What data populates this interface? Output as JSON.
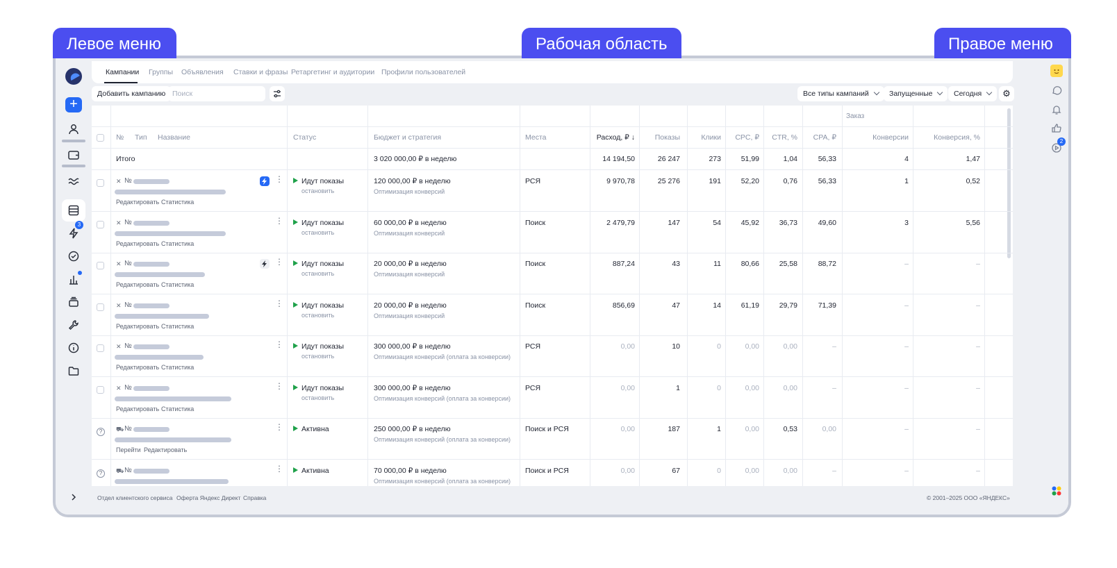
{
  "callouts": {
    "left_menu": "Левое меню",
    "work_area": "Рабочая область",
    "right_menu": "Правое меню"
  },
  "tabs": [
    "Кампании",
    "Группы",
    "Объявления",
    "Ставки и фразы",
    "Ретаргетинг и аудитории",
    "Профили пользователей"
  ],
  "toolbar": {
    "add_campaign": "Добавить кампанию",
    "search_placeholder": "Поиск",
    "campaign_types": "Все типы кампаний",
    "state_filter": "Запущенные",
    "period": "Сегодня"
  },
  "left_menu": {
    "badge_count": "3"
  },
  "right_menu": {
    "badge_count": "2"
  },
  "table": {
    "group_header": "Заказ",
    "headers": {
      "num": "№",
      "type": "Тип",
      "name": "Название",
      "status": "Статус",
      "budget": "Бюджет и стратегия",
      "places": "Места",
      "cost": "Расход, ₽ ↓",
      "impressions": "Показы",
      "clicks": "Клики",
      "cpc": "CPC, ₽",
      "ctr": "CTR, %",
      "cpa": "CPA, ₽",
      "conversions": "Конверсии",
      "conv_rate": "Конверсия, %"
    },
    "total": {
      "label": "Итого",
      "budget": "3 020 000,00 ₽ в неделю",
      "cost": "14 194,50",
      "impressions": "26 247",
      "clicks": "273",
      "cpc": "51,99",
      "ctr": "1,04",
      "cpa": "56,33",
      "conversions": "4",
      "conv_rate": "1,47"
    },
    "rows": [
      {
        "num_prefix": "№",
        "link1": "Редактировать",
        "link2": "Статистика",
        "status": "Идут показы",
        "status_action": "остановить",
        "budget": "120 000,00 ₽ в неделю",
        "strategy": "Оптимизация конверсий",
        "places": "РСЯ",
        "cost": "9 970,78",
        "impressions": "25 276",
        "clicks": "191",
        "cpc": "52,20",
        "ctr": "0,76",
        "cpa": "56,33",
        "conversions": "1",
        "conv_rate": "0,52"
      },
      {
        "num_prefix": "№",
        "link1": "Редактировать",
        "link2": "Статистика",
        "status": "Идут показы",
        "status_action": "остановить",
        "budget": "60 000,00 ₽ в неделю",
        "strategy": "Оптимизация конверсий",
        "places": "Поиск",
        "cost": "2 479,79",
        "impressions": "147",
        "clicks": "54",
        "cpc": "45,92",
        "ctr": "36,73",
        "cpa": "49,60",
        "conversions": "3",
        "conv_rate": "5,56"
      },
      {
        "num_prefix": "№",
        "link1": "Редактировать",
        "link2": "Статистика",
        "status": "Идут показы",
        "status_action": "остановить",
        "budget": "20 000,00 ₽ в неделю",
        "strategy": "Оптимизация конверсий",
        "places": "Поиск",
        "cost": "887,24",
        "impressions": "43",
        "clicks": "11",
        "cpc": "80,66",
        "ctr": "25,58",
        "cpa": "88,72",
        "conversions": "–",
        "conv_rate": "–"
      },
      {
        "num_prefix": "№",
        "link1": "Редактировать",
        "link2": "Статистика",
        "status": "Идут показы",
        "status_action": "остановить",
        "budget": "20 000,00 ₽ в неделю",
        "strategy": "Оптимизация конверсий",
        "places": "Поиск",
        "cost": "856,69",
        "impressions": "47",
        "clicks": "14",
        "cpc": "61,19",
        "ctr": "29,79",
        "cpa": "71,39",
        "conversions": "–",
        "conv_rate": "–"
      },
      {
        "num_prefix": "№",
        "link1": "Редактировать",
        "link2": "Статистика",
        "status": "Идут показы",
        "status_action": "остановить",
        "budget": "300 000,00 ₽ в неделю",
        "strategy": "Оптимизация конверсий (оплата за конверсии)",
        "places": "РСЯ",
        "cost": "0,00",
        "impressions": "10",
        "clicks": "0",
        "cpc": "0,00",
        "ctr": "0,00",
        "cpa": "–",
        "conversions": "–",
        "conv_rate": "–"
      },
      {
        "num_prefix": "№",
        "link1": "Редактировать",
        "link2": "Статистика",
        "status": "Идут показы",
        "status_action": "остановить",
        "budget": "300 000,00 ₽ в неделю",
        "strategy": "Оптимизация конверсий (оплата за конверсии)",
        "places": "РСЯ",
        "cost": "0,00",
        "impressions": "1",
        "clicks": "0",
        "cpc": "0,00",
        "ctr": "0,00",
        "cpa": "–",
        "conversions": "–",
        "conv_rate": "–"
      },
      {
        "num_prefix": "№",
        "link1": "Перейти",
        "link2": "Редактировать",
        "status": "Активна",
        "status_action": "",
        "budget": "250 000,00 ₽ в неделю",
        "strategy": "Оптимизация конверсий (оплата за конверсии)",
        "places": "Поиск и РСЯ",
        "cost": "0,00",
        "impressions": "187",
        "clicks": "1",
        "cpc": "0,00",
        "ctr": "0,53",
        "cpa": "0,00",
        "conversions": "–",
        "conv_rate": "–"
      },
      {
        "num_prefix": "№",
        "link1": "",
        "link2": "",
        "status": "Активна",
        "status_action": "",
        "budget": "70 000,00 ₽ в неделю",
        "strategy": "Оптимизация конверсий (оплата за конверсии)",
        "places": "Поиск и РСЯ",
        "cost": "0,00",
        "impressions": "67",
        "clicks": "0",
        "cpc": "0,00",
        "ctr": "0,00",
        "cpa": "–",
        "conversions": "–",
        "conv_rate": "–"
      }
    ]
  },
  "footer": {
    "links": [
      "Отдел клиентского сервиса",
      "Оферта Яндекс Директ",
      "Справка"
    ],
    "copyright": "© 2001–2025 ООО «ЯНДЕКС»"
  },
  "colors": {
    "accent": "#4b4ef0",
    "primary_button": "#2569f5",
    "status_active": "#1fa14a"
  }
}
